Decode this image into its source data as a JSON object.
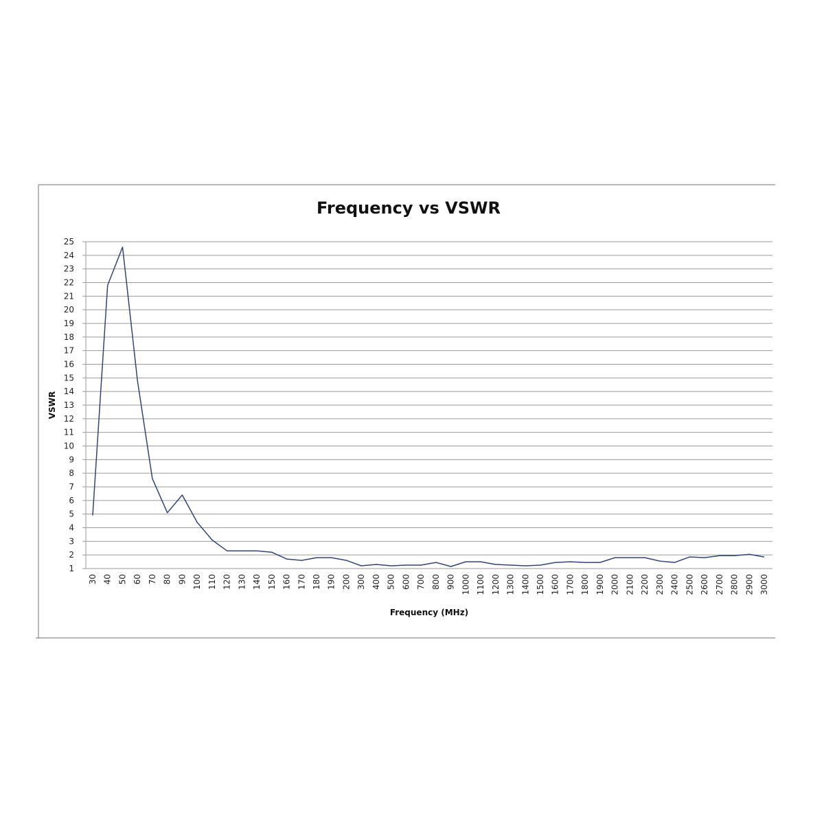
{
  "chart_data": {
    "type": "line",
    "title": "Frequency vs VSWR",
    "xlabel": "Frequency (MHz)",
    "ylabel": "VSWR",
    "categories": [
      "30",
      "40",
      "50",
      "60",
      "70",
      "80",
      "90",
      "100",
      "110",
      "120",
      "130",
      "140",
      "150",
      "160",
      "170",
      "180",
      "190",
      "200",
      "300",
      "400",
      "500",
      "600",
      "700",
      "800",
      "900",
      "1000",
      "1100",
      "1200",
      "1300",
      "1400",
      "1500",
      "1600",
      "1700",
      "1800",
      "1900",
      "2000",
      "2100",
      "2200",
      "2300",
      "2400",
      "2500",
      "2600",
      "2700",
      "2800",
      "2900",
      "3000"
    ],
    "series": [
      {
        "values": [
          4.9,
          21.8,
          24.6,
          14.8,
          7.6,
          5.1,
          6.4,
          4.4,
          3.1,
          2.3,
          2.3,
          2.3,
          2.2,
          1.7,
          1.6,
          1.8,
          1.8,
          1.6,
          1.2,
          1.3,
          1.2,
          1.25,
          1.25,
          1.45,
          1.15,
          1.5,
          1.5,
          1.3,
          1.25,
          1.2,
          1.25,
          1.45,
          1.5,
          1.45,
          1.45,
          1.8,
          1.8,
          1.8,
          1.55,
          1.45,
          1.85,
          1.8,
          1.95,
          1.95,
          2.05,
          1.85
        ],
        "color": "#2f4478"
      }
    ],
    "yticks": [
      "1",
      "2",
      "3",
      "4",
      "5",
      "6",
      "7",
      "8",
      "9",
      "10",
      "11",
      "12",
      "13",
      "14",
      "15",
      "16",
      "17",
      "18",
      "19",
      "20",
      "21",
      "22",
      "23",
      "24",
      "25"
    ],
    "ylim": [
      1,
      25
    ],
    "grid": true,
    "legend": "none"
  }
}
